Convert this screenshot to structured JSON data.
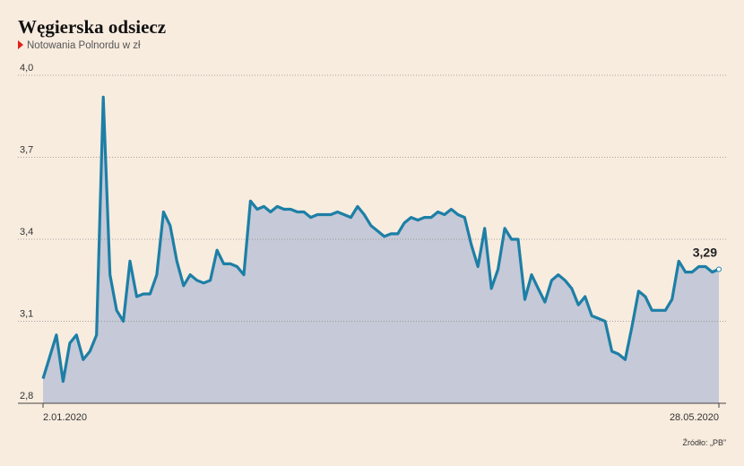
{
  "chart_data": {
    "type": "area",
    "title": "Węgierska odsiecz",
    "subtitle": "Notowania Polnordu w zł",
    "source": "Źródło: „PB”",
    "categories": [
      "2.01.2020",
      null,
      null,
      null,
      null,
      null,
      null,
      null,
      null,
      null,
      null,
      null,
      null,
      null,
      null,
      null,
      null,
      null,
      null,
      null,
      null,
      null,
      null,
      null,
      null,
      null,
      null,
      null,
      null,
      null,
      null,
      null,
      null,
      null,
      null,
      null,
      null,
      null,
      null,
      null,
      null,
      null,
      null,
      null,
      null,
      null,
      null,
      null,
      null,
      null,
      null,
      null,
      null,
      null,
      null,
      null,
      null,
      null,
      null,
      null,
      null,
      null,
      null,
      null,
      null,
      null,
      null,
      null,
      null,
      null,
      null,
      null,
      null,
      null,
      null,
      null,
      null,
      null,
      null,
      null,
      null,
      null,
      null,
      null,
      null,
      null,
      null,
      null,
      null,
      null,
      null,
      null,
      null,
      null,
      null,
      null,
      null,
      null,
      null,
      null,
      null,
      "28.05.2020"
    ],
    "values": [
      2.89,
      2.97,
      3.05,
      2.88,
      3.02,
      3.05,
      2.96,
      2.99,
      3.05,
      3.92,
      3.27,
      3.14,
      3.1,
      3.32,
      3.19,
      3.2,
      3.2,
      3.27,
      3.5,
      3.45,
      3.32,
      3.23,
      3.27,
      3.25,
      3.24,
      3.25,
      3.36,
      3.31,
      3.31,
      3.3,
      3.27,
      3.54,
      3.51,
      3.52,
      3.5,
      3.52,
      3.51,
      3.51,
      3.5,
      3.5,
      3.48,
      3.49,
      3.49,
      3.49,
      3.5,
      3.49,
      3.48,
      3.52,
      3.49,
      3.45,
      3.43,
      3.41,
      3.42,
      3.42,
      3.46,
      3.48,
      3.47,
      3.48,
      3.48,
      3.5,
      3.49,
      3.51,
      3.49,
      3.48,
      3.38,
      3.3,
      3.44,
      3.22,
      3.29,
      3.44,
      3.4,
      3.4,
      3.18,
      3.27,
      3.22,
      3.17,
      3.25,
      3.27,
      3.25,
      3.22,
      3.16,
      3.19,
      3.12,
      3.11,
      3.1,
      2.99,
      2.98,
      2.96,
      3.08,
      3.21,
      3.19,
      3.14,
      3.14,
      3.14,
      3.18,
      3.32,
      3.28,
      3.28,
      3.3,
      3.3,
      3.28,
      3.29
    ],
    "value_labels": [
      null,
      null,
      null,
      null,
      null,
      null,
      null,
      null,
      null,
      null,
      null,
      null,
      null,
      null,
      null,
      null,
      null,
      null,
      null,
      null,
      null,
      null,
      null,
      null,
      null,
      null,
      null,
      null,
      null,
      null,
      null,
      null,
      null,
      null,
      null,
      null,
      null,
      null,
      null,
      null,
      null,
      null,
      null,
      null,
      null,
      null,
      null,
      null,
      null,
      null,
      null,
      null,
      null,
      null,
      null,
      null,
      null,
      null,
      null,
      null,
      null,
      null,
      null,
      null,
      null,
      null,
      null,
      null,
      null,
      null,
      null,
      null,
      null,
      null,
      null,
      null,
      null,
      null,
      null,
      null,
      null,
      null,
      null,
      null,
      null,
      null,
      null,
      null,
      null,
      null,
      null,
      null,
      null,
      null,
      null,
      null,
      null,
      null,
      null,
      null,
      null,
      "3,29"
    ],
    "color": "#1d7fa6",
    "fill": "#c6c9d7",
    "ylim": [
      2.8,
      4.0
    ],
    "yticks": [
      {
        "value": 2.8,
        "label": "2,8"
      },
      {
        "value": 3.1,
        "label": "3,1"
      },
      {
        "value": 3.4,
        "label": "3,4"
      },
      {
        "value": 3.7,
        "label": "3,7"
      },
      {
        "value": 4.0,
        "label": "4,0"
      }
    ],
    "grid": true
  }
}
